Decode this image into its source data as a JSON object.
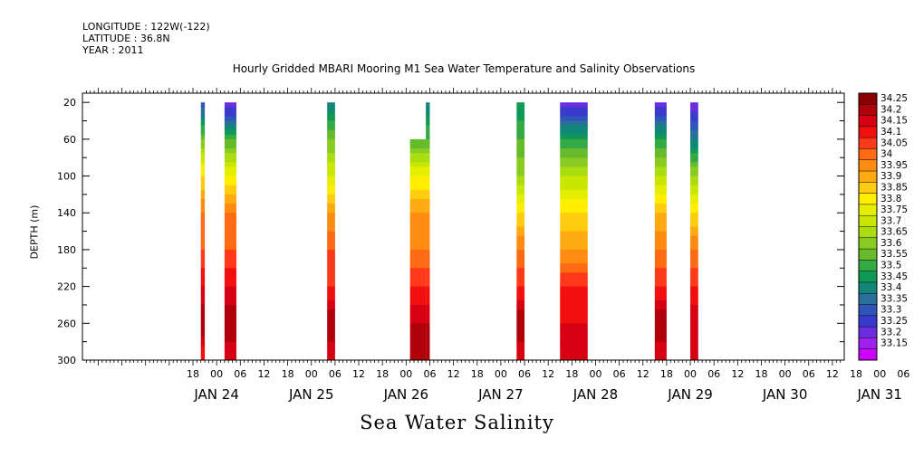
{
  "header": {
    "longitude": "LONGITUDE : 122W(-122)",
    "latitude": "LATITUDE : 36.8N",
    "year": "YEAR : 2011"
  },
  "chart_data": {
    "type": "heatmap",
    "title": "Hourly Gridded MBARI Mooring M1 Sea Water Temperature and Salinity Observations",
    "xlabel": "Sea Water Salinity",
    "ylabel": "DEPTH (m)",
    "ylim": [
      300,
      10
    ],
    "y_ticks": [
      20,
      60,
      100,
      140,
      180,
      220,
      260,
      300
    ],
    "x_range_hours_from_jan24_00": [
      -34,
      159
    ],
    "x_hour_ticks": [
      "18",
      "00",
      "06",
      "12",
      "18",
      "00",
      "06",
      "12",
      "18",
      "00",
      "06",
      "12",
      "18",
      "00",
      "06",
      "12",
      "18",
      "00",
      "06",
      "12",
      "18",
      "00",
      "06",
      "12",
      "18",
      "00",
      "06",
      "12",
      "18",
      "00",
      "06",
      "12"
    ],
    "x_day_labels": [
      "JAN 24",
      "JAN 25",
      "JAN 26",
      "JAN 27",
      "JAN 28",
      "JAN 29",
      "JAN 30",
      "JAN 31"
    ],
    "colorbar": {
      "levels": [
        "34.25",
        "34.2",
        "34.15",
        "34.1",
        "34.05",
        "34",
        "33.95",
        "33.9",
        "33.85",
        "33.8",
        "33.75",
        "33.7",
        "33.65",
        "33.6",
        "33.55",
        "33.5",
        "33.45",
        "33.4",
        "33.35",
        "33.3",
        "33.25",
        "33.2",
        "33.15"
      ],
      "colors": [
        "#8b0000",
        "#b0000a",
        "#d60012",
        "#f20f0f",
        "#ff3a1a",
        "#ff6a12",
        "#ff8c10",
        "#ffaa10",
        "#ffcc10",
        "#ffee00",
        "#e6ee00",
        "#c8e600",
        "#aadc10",
        "#88cc22",
        "#66bb2a",
        "#33aa44",
        "#109955",
        "#118877",
        "#2a6f9a",
        "#2f55bb",
        "#3a3acc",
        "#6a2ee0",
        "#a020f0",
        "#cc00ff"
      ]
    },
    "blocks": [
      {
        "start_hour": -4,
        "end_hour": -3,
        "top_depth": 20,
        "salinity_by_depth": [
          [
            20,
            33.3
          ],
          [
            40,
            33.45
          ],
          [
            60,
            33.6
          ],
          [
            100,
            33.85
          ],
          [
            140,
            34.0
          ],
          [
            180,
            34.05
          ],
          [
            220,
            34.15
          ],
          [
            260,
            34.25
          ],
          [
            300,
            34.1
          ]
        ]
      },
      {
        "start_hour": 2,
        "end_hour": 5,
        "top_depth": 20,
        "salinity_by_depth": [
          [
            20,
            33.2
          ],
          [
            40,
            33.35
          ],
          [
            60,
            33.55
          ],
          [
            100,
            33.8
          ],
          [
            140,
            34.0
          ],
          [
            180,
            34.05
          ],
          [
            220,
            34.15
          ],
          [
            260,
            34.25
          ],
          [
            300,
            34.15
          ]
        ]
      },
      {
        "start_hour": 28,
        "end_hour": 30,
        "top_depth": 20,
        "salinity_by_depth": [
          [
            20,
            33.4
          ],
          [
            40,
            33.5
          ],
          [
            60,
            33.6
          ],
          [
            100,
            33.75
          ],
          [
            140,
            33.95
          ],
          [
            180,
            34.05
          ],
          [
            220,
            34.1
          ],
          [
            260,
            34.25
          ],
          [
            300,
            34.15
          ]
        ]
      },
      {
        "start_hour": 49,
        "end_hour": 53,
        "top_depth": 60,
        "salinity_by_depth": [
          [
            60,
            33.55
          ],
          [
            100,
            33.8
          ],
          [
            140,
            33.95
          ],
          [
            180,
            34.0
          ],
          [
            220,
            34.1
          ],
          [
            260,
            34.2
          ],
          [
            300,
            34.25
          ]
        ]
      },
      {
        "start_hour": 53,
        "end_hour": 54,
        "top_depth": 20,
        "salinity_by_depth": [
          [
            20,
            33.4
          ],
          [
            60,
            33.55
          ],
          [
            100,
            33.8
          ],
          [
            140,
            33.95
          ],
          [
            180,
            34.0
          ],
          [
            220,
            34.1
          ],
          [
            260,
            34.2
          ],
          [
            300,
            34.25
          ]
        ]
      },
      {
        "start_hour": 76,
        "end_hour": 78,
        "top_depth": 20,
        "salinity_by_depth": [
          [
            20,
            33.45
          ],
          [
            60,
            33.55
          ],
          [
            100,
            33.65
          ],
          [
            140,
            33.85
          ],
          [
            180,
            34.0
          ],
          [
            220,
            34.1
          ],
          [
            260,
            34.25
          ],
          [
            300,
            34.15
          ]
        ]
      },
      {
        "start_hour": 87,
        "end_hour": 94,
        "top_depth": 20,
        "salinity_by_depth": [
          [
            20,
            33.2
          ],
          [
            40,
            33.35
          ],
          [
            60,
            33.5
          ],
          [
            100,
            33.7
          ],
          [
            140,
            33.85
          ],
          [
            180,
            33.95
          ],
          [
            220,
            34.1
          ],
          [
            260,
            34.15
          ],
          [
            300,
            34.15
          ]
        ]
      },
      {
        "start_hour": 111,
        "end_hour": 114,
        "top_depth": 20,
        "salinity_by_depth": [
          [
            20,
            33.2
          ],
          [
            40,
            33.35
          ],
          [
            60,
            33.5
          ],
          [
            100,
            33.7
          ],
          [
            140,
            33.9
          ],
          [
            180,
            34.0
          ],
          [
            220,
            34.1
          ],
          [
            260,
            34.25
          ],
          [
            300,
            34.15
          ]
        ]
      },
      {
        "start_hour": 120,
        "end_hour": 122,
        "top_depth": 20,
        "salinity_by_depth": [
          [
            20,
            33.2
          ],
          [
            40,
            33.3
          ],
          [
            60,
            33.4
          ],
          [
            100,
            33.65
          ],
          [
            140,
            33.85
          ],
          [
            180,
            34.0
          ],
          [
            220,
            34.1
          ],
          [
            260,
            34.2
          ],
          [
            300,
            34.15
          ]
        ]
      }
    ]
  }
}
